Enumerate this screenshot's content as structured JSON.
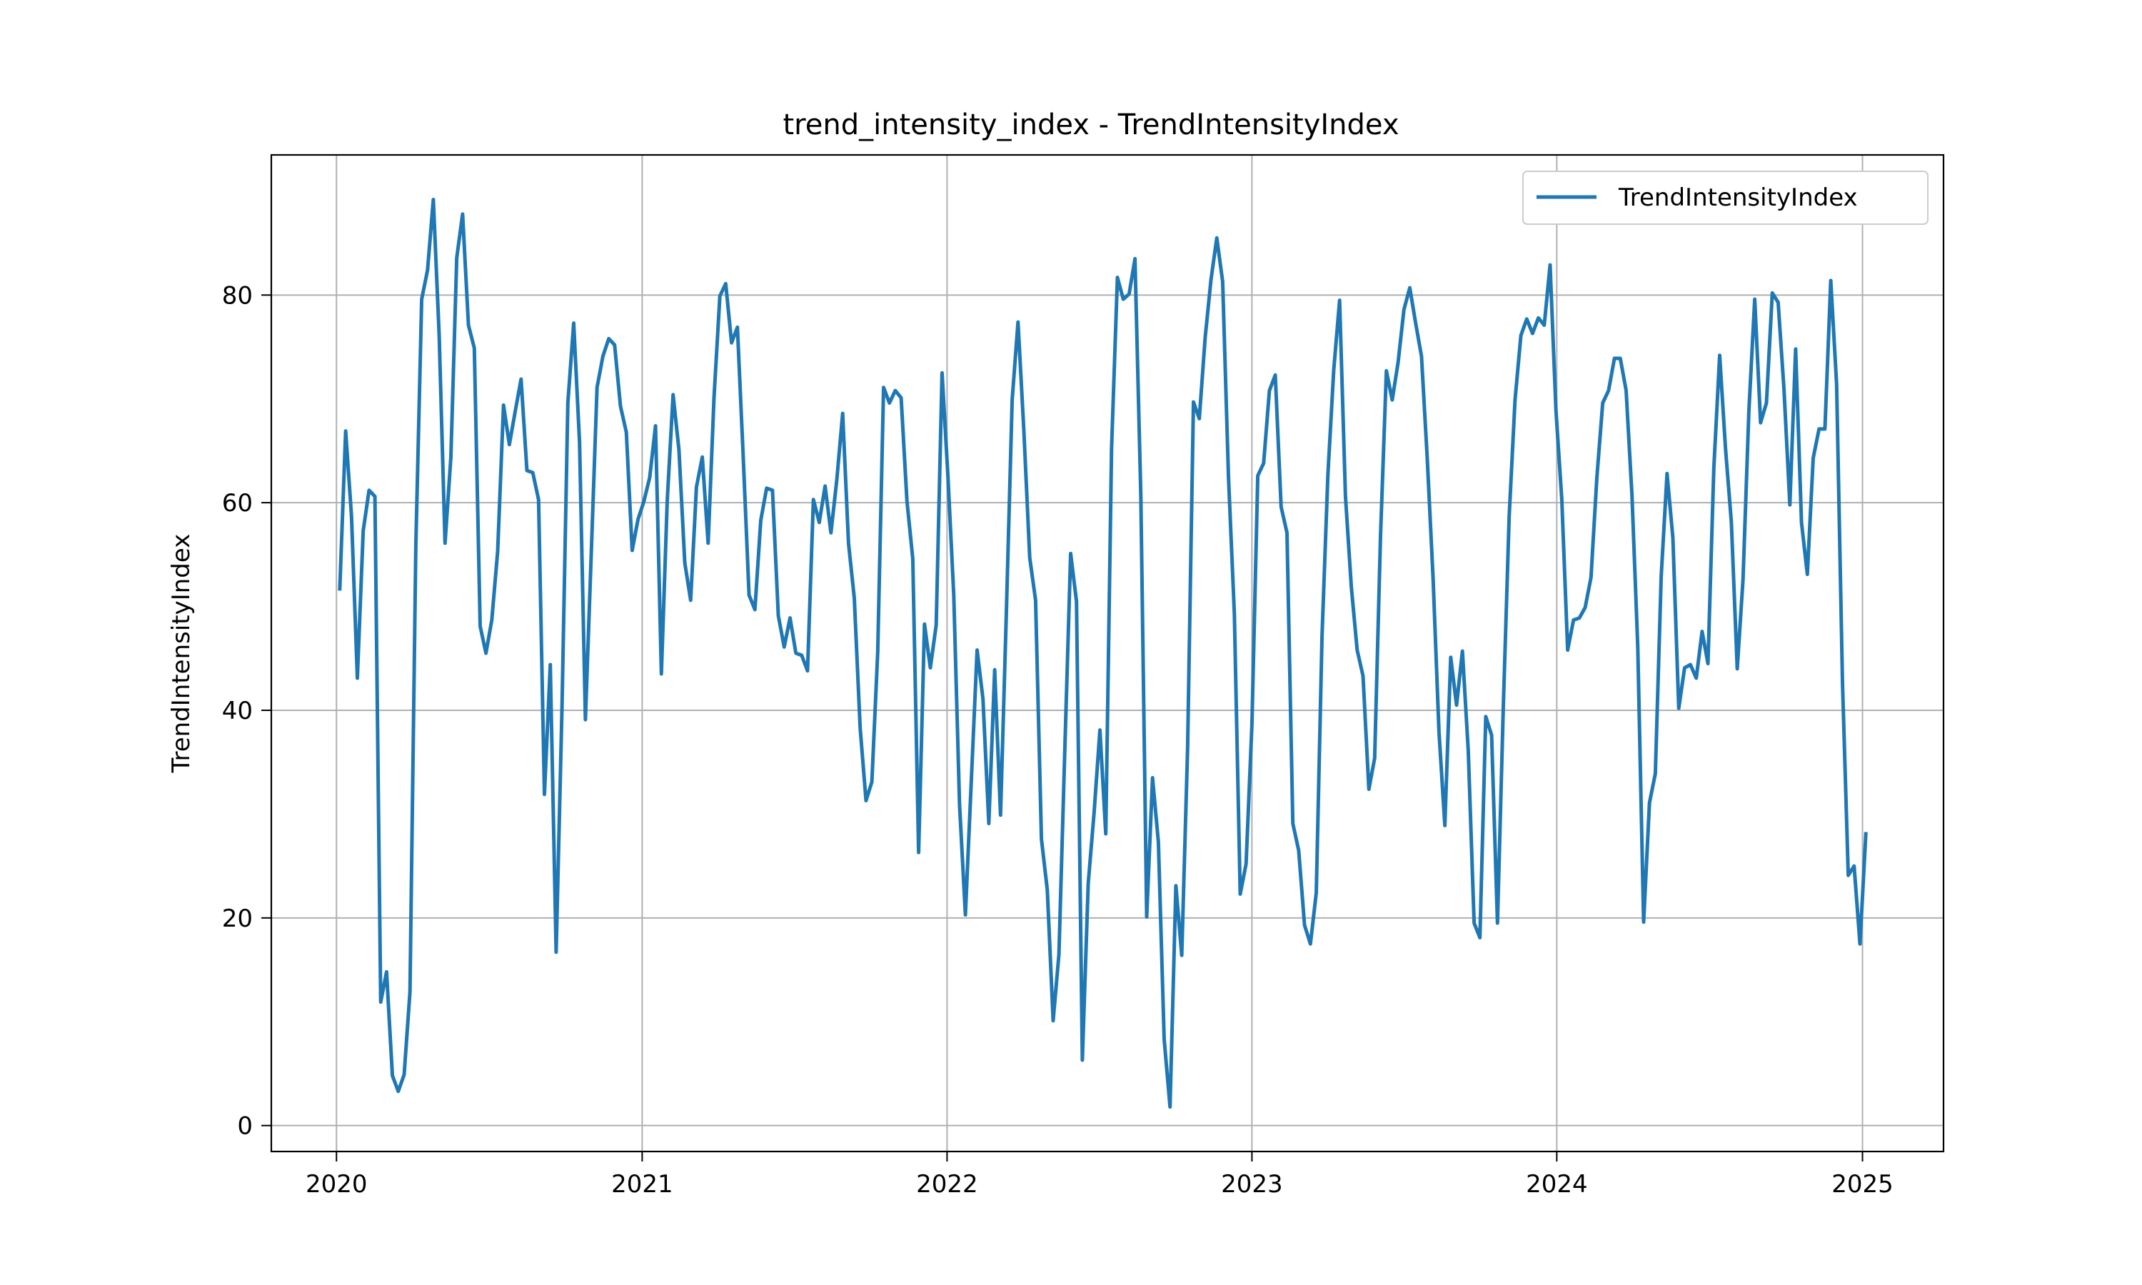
{
  "chart_data": {
    "type": "line",
    "title": "trend_intensity_index - TrendIntensityIndex",
    "xlabel": "",
    "ylabel": "TrendIntensityIndex",
    "xlim": [
      "2019-10-15",
      "2025-04-08"
    ],
    "ylim": [
      -2.5,
      93.5
    ],
    "xticks": [
      "2020",
      "2021",
      "2022",
      "2023",
      "2024",
      "2025"
    ],
    "yticks": [
      0,
      20,
      40,
      60,
      80
    ],
    "grid": true,
    "legend_position": "top-right",
    "series": [
      {
        "name": "TrendIntensityIndex",
        "color": "#1f77b4",
        "points": [
          [
            "2020-01-05",
            51.7
          ],
          [
            "2020-01-12",
            66.9
          ],
          [
            "2020-01-19",
            58.7
          ],
          [
            "2020-01-26",
            43.1
          ],
          [
            "2020-02-02",
            57.3
          ],
          [
            "2020-02-09",
            61.2
          ],
          [
            "2020-02-16",
            60.6
          ],
          [
            "2020-02-23",
            11.9
          ],
          [
            "2020-03-01",
            14.8
          ],
          [
            "2020-03-08",
            4.8
          ],
          [
            "2020-03-15",
            3.3
          ],
          [
            "2020-03-22",
            4.9
          ],
          [
            "2020-03-29",
            12.9
          ],
          [
            "2020-04-05",
            55.9
          ],
          [
            "2020-04-12",
            79.6
          ],
          [
            "2020-04-19",
            82.4
          ],
          [
            "2020-04-26",
            89.2
          ],
          [
            "2020-05-03",
            76.1
          ],
          [
            "2020-05-10",
            56.1
          ],
          [
            "2020-05-17",
            64.4
          ],
          [
            "2020-05-24",
            83.6
          ],
          [
            "2020-05-31",
            87.8
          ],
          [
            "2020-06-07",
            77.1
          ],
          [
            "2020-06-14",
            74.9
          ],
          [
            "2020-06-21",
            48.1
          ],
          [
            "2020-06-28",
            45.5
          ],
          [
            "2020-07-05",
            48.7
          ],
          [
            "2020-07-12",
            55.3
          ],
          [
            "2020-07-19",
            69.4
          ],
          [
            "2020-07-26",
            65.6
          ],
          [
            "2020-08-02",
            68.8
          ],
          [
            "2020-08-09",
            71.9
          ],
          [
            "2020-08-16",
            63.1
          ],
          [
            "2020-08-23",
            62.9
          ],
          [
            "2020-08-30",
            60.3
          ],
          [
            "2020-09-06",
            31.9
          ],
          [
            "2020-09-13",
            44.4
          ],
          [
            "2020-09-20",
            16.7
          ],
          [
            "2020-09-27",
            40.2
          ],
          [
            "2020-10-04",
            69.6
          ],
          [
            "2020-10-11",
            77.3
          ],
          [
            "2020-10-18",
            65.8
          ],
          [
            "2020-10-25",
            39.1
          ],
          [
            "2020-11-01",
            54.9
          ],
          [
            "2020-11-08",
            71.1
          ],
          [
            "2020-11-15",
            74.1
          ],
          [
            "2020-11-22",
            75.8
          ],
          [
            "2020-11-29",
            75.2
          ],
          [
            "2020-12-06",
            69.3
          ],
          [
            "2020-12-13",
            66.8
          ],
          [
            "2020-12-20",
            55.4
          ],
          [
            "2020-12-27",
            58.4
          ],
          [
            "2021-01-03",
            60.1
          ],
          [
            "2021-01-10",
            62.4
          ],
          [
            "2021-01-17",
            67.4
          ],
          [
            "2021-01-24",
            43.5
          ],
          [
            "2021-01-31",
            60.2
          ],
          [
            "2021-02-07",
            70.4
          ],
          [
            "2021-02-14",
            65.1
          ],
          [
            "2021-02-21",
            54.2
          ],
          [
            "2021-02-28",
            50.6
          ],
          [
            "2021-03-07",
            61.5
          ],
          [
            "2021-03-14",
            64.4
          ],
          [
            "2021-03-21",
            56.1
          ],
          [
            "2021-03-28",
            70.1
          ],
          [
            "2021-04-04",
            79.9
          ],
          [
            "2021-04-11",
            81.1
          ],
          [
            "2021-04-18",
            75.4
          ],
          [
            "2021-04-25",
            76.9
          ],
          [
            "2021-05-02",
            64.3
          ],
          [
            "2021-05-09",
            51.1
          ],
          [
            "2021-05-16",
            49.7
          ],
          [
            "2021-05-23",
            58.3
          ],
          [
            "2021-05-30",
            61.4
          ],
          [
            "2021-06-06",
            61.2
          ],
          [
            "2021-06-13",
            49.1
          ],
          [
            "2021-06-20",
            46.1
          ],
          [
            "2021-06-27",
            48.9
          ],
          [
            "2021-07-04",
            45.5
          ],
          [
            "2021-07-11",
            45.3
          ],
          [
            "2021-07-18",
            43.8
          ],
          [
            "2021-07-25",
            60.3
          ],
          [
            "2021-08-01",
            58.1
          ],
          [
            "2021-08-08",
            61.6
          ],
          [
            "2021-08-15",
            57.1
          ],
          [
            "2021-08-22",
            62.2
          ],
          [
            "2021-08-29",
            68.6
          ],
          [
            "2021-09-05",
            56.1
          ],
          [
            "2021-09-12",
            50.8
          ],
          [
            "2021-09-19",
            38.3
          ],
          [
            "2021-09-26",
            31.3
          ],
          [
            "2021-10-03",
            33.1
          ],
          [
            "2021-10-10",
            45.6
          ],
          [
            "2021-10-17",
            71.1
          ],
          [
            "2021-10-24",
            69.6
          ],
          [
            "2021-10-31",
            70.8
          ],
          [
            "2021-11-07",
            70.1
          ],
          [
            "2021-11-14",
            60.2
          ],
          [
            "2021-11-21",
            54.6
          ],
          [
            "2021-11-28",
            26.3
          ],
          [
            "2021-12-05",
            48.3
          ],
          [
            "2021-12-12",
            44.1
          ],
          [
            "2021-12-19",
            48.2
          ],
          [
            "2021-12-26",
            72.5
          ],
          [
            "2022-01-02",
            62.6
          ],
          [
            "2022-01-09",
            51.1
          ],
          [
            "2022-01-16",
            30.9
          ],
          [
            "2022-01-23",
            20.3
          ],
          [
            "2022-01-30",
            33.1
          ],
          [
            "2022-02-06",
            45.8
          ],
          [
            "2022-02-13",
            41.1
          ],
          [
            "2022-02-20",
            29.1
          ],
          [
            "2022-02-27",
            43.9
          ],
          [
            "2022-03-06",
            29.9
          ],
          [
            "2022-03-13",
            49.5
          ],
          [
            "2022-03-20",
            69.9
          ],
          [
            "2022-03-27",
            77.4
          ],
          [
            "2022-04-03",
            66.9
          ],
          [
            "2022-04-10",
            54.7
          ],
          [
            "2022-04-17",
            50.6
          ],
          [
            "2022-04-24",
            27.6
          ],
          [
            "2022-05-01",
            22.7
          ],
          [
            "2022-05-08",
            10.1
          ],
          [
            "2022-05-15",
            16.5
          ],
          [
            "2022-05-22",
            36.1
          ],
          [
            "2022-05-29",
            55.1
          ],
          [
            "2022-06-05",
            50.5
          ],
          [
            "2022-06-12",
            6.3
          ],
          [
            "2022-06-19",
            23.3
          ],
          [
            "2022-06-26",
            30.1
          ],
          [
            "2022-07-03",
            38.1
          ],
          [
            "2022-07-10",
            28.1
          ],
          [
            "2022-07-17",
            65.2
          ],
          [
            "2022-07-24",
            81.7
          ],
          [
            "2022-07-31",
            79.6
          ],
          [
            "2022-08-07",
            80.1
          ],
          [
            "2022-08-14",
            83.5
          ],
          [
            "2022-08-21",
            60.7
          ],
          [
            "2022-08-28",
            20.1
          ],
          [
            "2022-09-04",
            33.5
          ],
          [
            "2022-09-11",
            27.3
          ],
          [
            "2022-09-18",
            8.3
          ],
          [
            "2022-09-25",
            1.8
          ],
          [
            "2022-10-02",
            23.1
          ],
          [
            "2022-10-09",
            16.4
          ],
          [
            "2022-10-16",
            36.3
          ],
          [
            "2022-10-23",
            69.7
          ],
          [
            "2022-10-30",
            68.1
          ],
          [
            "2022-11-06",
            75.9
          ],
          [
            "2022-11-13",
            81.5
          ],
          [
            "2022-11-20",
            85.5
          ],
          [
            "2022-11-27",
            81.3
          ],
          [
            "2022-12-04",
            62.4
          ],
          [
            "2022-12-11",
            49.3
          ],
          [
            "2022-12-18",
            22.3
          ],
          [
            "2022-12-25",
            25.2
          ],
          [
            "2023-01-01",
            38.6
          ],
          [
            "2023-01-08",
            62.6
          ],
          [
            "2023-01-15",
            63.8
          ],
          [
            "2023-01-22",
            70.8
          ],
          [
            "2023-01-29",
            72.3
          ],
          [
            "2023-02-05",
            59.6
          ],
          [
            "2023-02-12",
            57.1
          ],
          [
            "2023-02-19",
            29.1
          ],
          [
            "2023-02-26",
            26.5
          ],
          [
            "2023-03-05",
            19.3
          ],
          [
            "2023-03-12",
            17.5
          ],
          [
            "2023-03-19",
            22.4
          ],
          [
            "2023-03-26",
            47.2
          ],
          [
            "2023-04-02",
            62.7
          ],
          [
            "2023-04-09",
            72.8
          ],
          [
            "2023-04-16",
            79.5
          ],
          [
            "2023-04-23",
            60.6
          ],
          [
            "2023-04-30",
            51.9
          ],
          [
            "2023-05-07",
            45.8
          ],
          [
            "2023-05-14",
            43.3
          ],
          [
            "2023-05-21",
            32.4
          ],
          [
            "2023-05-28",
            35.4
          ],
          [
            "2023-06-04",
            56.8
          ],
          [
            "2023-06-11",
            72.7
          ],
          [
            "2023-06-18",
            69.9
          ],
          [
            "2023-06-25",
            73.5
          ],
          [
            "2023-07-02",
            78.6
          ],
          [
            "2023-07-09",
            80.7
          ],
          [
            "2023-07-16",
            77.3
          ],
          [
            "2023-07-23",
            74.1
          ],
          [
            "2023-07-30",
            64.2
          ],
          [
            "2023-08-06",
            52.6
          ],
          [
            "2023-08-13",
            37.9
          ],
          [
            "2023-08-20",
            28.9
          ],
          [
            "2023-08-27",
            45.1
          ],
          [
            "2023-09-03",
            40.5
          ],
          [
            "2023-09-10",
            45.7
          ],
          [
            "2023-09-17",
            36.1
          ],
          [
            "2023-09-24",
            19.5
          ],
          [
            "2023-10-01",
            18.1
          ],
          [
            "2023-10-08",
            39.4
          ],
          [
            "2023-10-15",
            37.6
          ],
          [
            "2023-10-22",
            19.5
          ],
          [
            "2023-10-29",
            40.4
          ],
          [
            "2023-11-05",
            58.7
          ],
          [
            "2023-11-12",
            69.9
          ],
          [
            "2023-11-19",
            76.1
          ],
          [
            "2023-11-26",
            77.7
          ],
          [
            "2023-12-03",
            76.3
          ],
          [
            "2023-12-10",
            77.8
          ],
          [
            "2023-12-17",
            77.1
          ],
          [
            "2023-12-24",
            82.9
          ],
          [
            "2023-12-31",
            68.9
          ],
          [
            "2024-01-07",
            60.3
          ],
          [
            "2024-01-14",
            45.8
          ],
          [
            "2024-01-21",
            48.7
          ],
          [
            "2024-01-28",
            48.9
          ],
          [
            "2024-02-04",
            49.9
          ],
          [
            "2024-02-11",
            52.8
          ],
          [
            "2024-02-18",
            62.4
          ],
          [
            "2024-02-25",
            69.6
          ],
          [
            "2024-03-03",
            70.8
          ],
          [
            "2024-03-10",
            73.9
          ],
          [
            "2024-03-17",
            73.9
          ],
          [
            "2024-03-24",
            70.8
          ],
          [
            "2024-03-31",
            60.7
          ],
          [
            "2024-04-07",
            46.1
          ],
          [
            "2024-04-14",
            19.6
          ],
          [
            "2024-04-21",
            31.1
          ],
          [
            "2024-04-28",
            33.9
          ],
          [
            "2024-05-05",
            52.9
          ],
          [
            "2024-05-12",
            62.8
          ],
          [
            "2024-05-19",
            56.6
          ],
          [
            "2024-05-26",
            40.2
          ],
          [
            "2024-06-02",
            44.1
          ],
          [
            "2024-06-09",
            44.4
          ],
          [
            "2024-06-16",
            43.1
          ],
          [
            "2024-06-23",
            47.6
          ],
          [
            "2024-06-30",
            44.5
          ],
          [
            "2024-07-07",
            63.3
          ],
          [
            "2024-07-14",
            74.2
          ],
          [
            "2024-07-21",
            65.2
          ],
          [
            "2024-07-28",
            58.1
          ],
          [
            "2024-08-04",
            44.0
          ],
          [
            "2024-08-11",
            52.6
          ],
          [
            "2024-08-18",
            68.8
          ],
          [
            "2024-08-25",
            79.6
          ],
          [
            "2024-09-01",
            67.7
          ],
          [
            "2024-09-08",
            69.6
          ],
          [
            "2024-09-15",
            80.2
          ],
          [
            "2024-09-22",
            79.3
          ],
          [
            "2024-09-29",
            70.9
          ],
          [
            "2024-10-06",
            59.8
          ],
          [
            "2024-10-13",
            74.8
          ],
          [
            "2024-10-20",
            58.1
          ],
          [
            "2024-10-27",
            53.1
          ],
          [
            "2024-11-03",
            64.3
          ],
          [
            "2024-11-10",
            67.1
          ],
          [
            "2024-11-17",
            67.1
          ],
          [
            "2024-11-24",
            81.4
          ],
          [
            "2024-12-01",
            71.4
          ],
          [
            "2024-12-08",
            42.7
          ],
          [
            "2024-12-15",
            24.1
          ],
          [
            "2024-12-22",
            25.0
          ],
          [
            "2024-12-29",
            17.5
          ],
          [
            "2025-01-05",
            28.1
          ]
        ]
      }
    ]
  }
}
